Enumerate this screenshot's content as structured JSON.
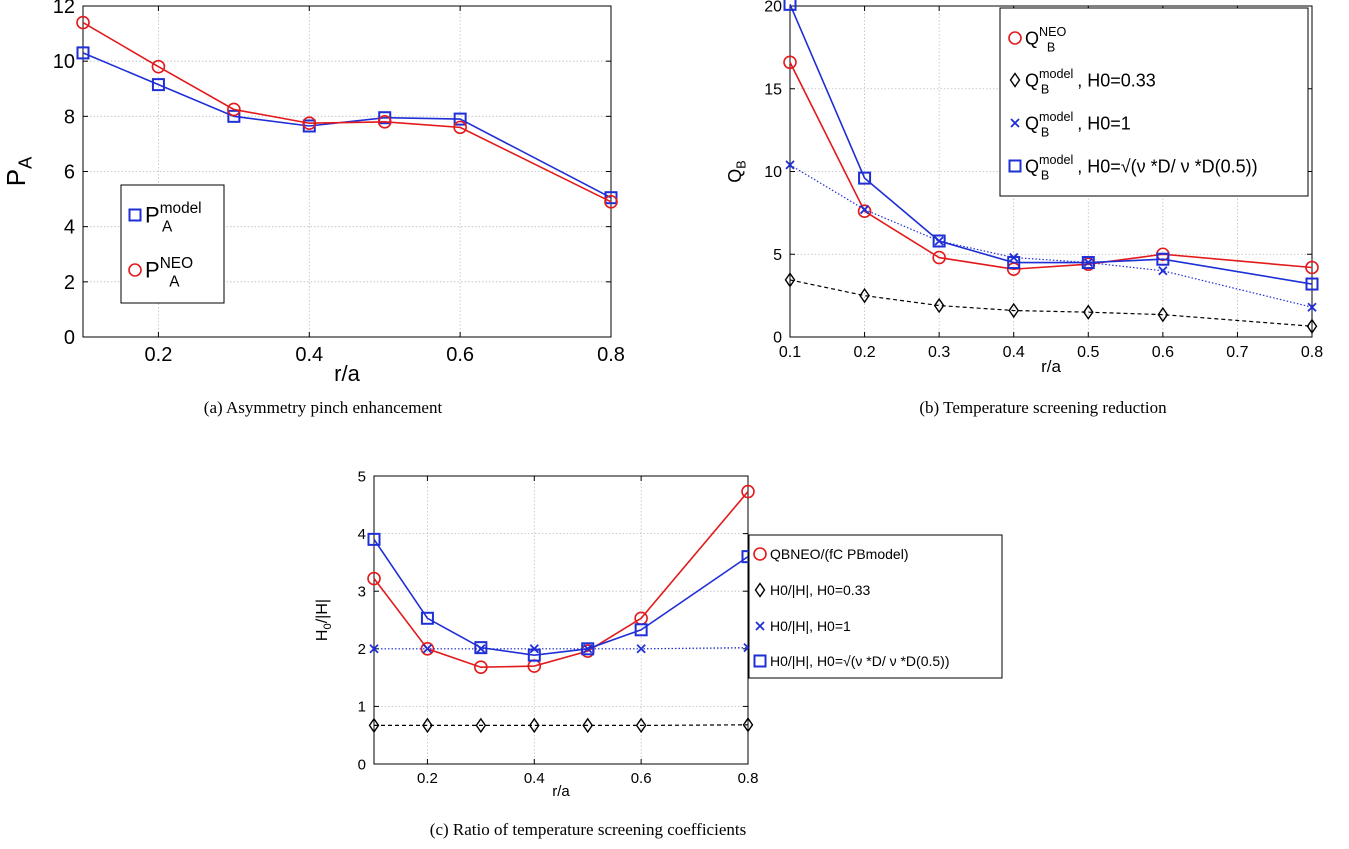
{
  "colors": {
    "red": "#e31a1c",
    "blue": "#1f2fd6",
    "black": "#000000",
    "grid": "#bdbdbd"
  },
  "chart_data": [
    {
      "id": "a",
      "type": "line",
      "caption": "(a) Asymmetry pinch enhancement",
      "xlabel": "r/a",
      "ylabel": {
        "base": "P",
        "sub": "A"
      },
      "xlim": [
        0.1,
        0.8
      ],
      "ylim": [
        0,
        12
      ],
      "xticks": [
        0.2,
        0.4,
        0.6,
        0.8
      ],
      "xtick_labels": [
        "0.2",
        "0.4",
        "0.6",
        "0.8"
      ],
      "yticks": [
        0,
        2,
        4,
        6,
        8,
        10,
        12
      ],
      "ytick_labels": [
        "0",
        "2",
        "4",
        "6",
        "8",
        "10",
        "12"
      ],
      "grid": true,
      "legend_position": "lower-left",
      "series": [
        {
          "key": "pa_model",
          "legend": {
            "base": "P",
            "sup": "model",
            "sub": "A",
            "rest": ""
          },
          "color": "blue",
          "marker": "square",
          "line": "solid",
          "x": [
            0.1,
            0.2,
            0.3,
            0.4,
            0.5,
            0.6,
            0.8
          ],
          "y": [
            10.3,
            9.15,
            8.0,
            7.65,
            7.95,
            7.9,
            5.05
          ]
        },
        {
          "key": "pa_neo",
          "legend": {
            "base": "P",
            "sup": "NEO",
            "sub": "A",
            "rest": ""
          },
          "color": "red",
          "marker": "circle",
          "line": "solid",
          "x": [
            0.1,
            0.2,
            0.3,
            0.4,
            0.5,
            0.6,
            0.8
          ],
          "y": [
            11.4,
            9.8,
            8.25,
            7.75,
            7.8,
            7.6,
            4.9
          ]
        }
      ]
    },
    {
      "id": "b",
      "type": "line",
      "caption": "(b) Temperature screening reduction",
      "xlabel": "r/a",
      "ylabel": {
        "base": "Q",
        "sub": "B"
      },
      "xlim": [
        0.1,
        0.8
      ],
      "ylim": [
        0,
        20
      ],
      "xticks": [
        0.1,
        0.2,
        0.3,
        0.4,
        0.5,
        0.6,
        0.7,
        0.8
      ],
      "xtick_labels": [
        "0.1",
        "0.2",
        "0.3",
        "0.4",
        "0.5",
        "0.6",
        "0.7",
        "0.8"
      ],
      "yticks": [
        0,
        5,
        10,
        15,
        20
      ],
      "ytick_labels": [
        "0",
        "5",
        "10",
        "15",
        "20"
      ],
      "grid": true,
      "legend_position": "top-right",
      "series": [
        {
          "key": "qb_neo",
          "legend": {
            "base": "Q",
            "sup": "NEO",
            "sub": "B",
            "rest": ""
          },
          "color": "red",
          "marker": "circle",
          "line": "solid",
          "x": [
            0.1,
            0.2,
            0.3,
            0.4,
            0.5,
            0.6,
            0.8
          ],
          "y": [
            16.6,
            7.6,
            4.8,
            4.1,
            4.4,
            5.0,
            4.2
          ]
        },
        {
          "key": "qb_model_033",
          "legend": {
            "base": "Q",
            "sup": "model",
            "sub": "B",
            "rest": ", H0=0.33"
          },
          "color": "black",
          "marker": "diamond",
          "line": "dashed",
          "x": [
            0.1,
            0.2,
            0.3,
            0.4,
            0.5,
            0.6,
            0.8
          ],
          "y": [
            3.45,
            2.5,
            1.9,
            1.6,
            1.5,
            1.35,
            0.65
          ]
        },
        {
          "key": "qb_model_1",
          "legend": {
            "base": "Q",
            "sup": "model",
            "sub": "B",
            "rest": ", H0=1"
          },
          "color": "blue",
          "marker": "x",
          "line": "dotted",
          "x": [
            0.1,
            0.2,
            0.3,
            0.4,
            0.5,
            0.6,
            0.8
          ],
          "y": [
            10.4,
            7.7,
            5.8,
            4.8,
            4.5,
            4.0,
            1.8
          ]
        },
        {
          "key": "qb_model_sqrt",
          "legend": {
            "base": "Q",
            "sup": "model",
            "sub": "B",
            "rest": ", H0=√(ν *D/ ν *D(0.5))"
          },
          "color": "blue",
          "marker": "square",
          "line": "solid",
          "x": [
            0.1,
            0.2,
            0.3,
            0.4,
            0.5,
            0.6,
            0.8
          ],
          "y": [
            20.1,
            9.6,
            5.8,
            4.5,
            4.5,
            4.7,
            3.2
          ]
        }
      ]
    },
    {
      "id": "c",
      "type": "line",
      "caption": "(c) Ratio of temperature screening coefficients",
      "xlabel": "r/a",
      "ylabel": {
        "base": "H",
        "sub": "0",
        "rest": "/|H|"
      },
      "xlim": [
        0.1,
        0.8
      ],
      "ylim": [
        0,
        5
      ],
      "xticks": [
        0.2,
        0.4,
        0.6,
        0.8
      ],
      "xtick_labels": [
        "0.2",
        "0.4",
        "0.6",
        "0.8"
      ],
      "yticks": [
        0,
        1,
        2,
        3,
        4,
        5
      ],
      "ytick_labels": [
        "0",
        "1",
        "2",
        "3",
        "4",
        "5"
      ],
      "grid": true,
      "legend_position": "outside-right",
      "series": [
        {
          "key": "ratio_neo",
          "legend_text": "QBNEO/(fC PBmodel)",
          "color": "red",
          "marker": "circle",
          "line": "solid",
          "x": [
            0.1,
            0.2,
            0.3,
            0.4,
            0.5,
            0.6,
            0.8
          ],
          "y": [
            3.22,
            2.0,
            1.68,
            1.7,
            1.96,
            2.53,
            4.73
          ]
        },
        {
          "key": "ratio_033",
          "legend_text": "H0/|H|, H0=0.33",
          "color": "black",
          "marker": "diamond",
          "line": "dashed",
          "x": [
            0.1,
            0.2,
            0.3,
            0.4,
            0.5,
            0.6,
            0.8
          ],
          "y": [
            0.67,
            0.67,
            0.67,
            0.67,
            0.67,
            0.67,
            0.68
          ]
        },
        {
          "key": "ratio_1",
          "legend_text": "H0/|H|, H0=1",
          "color": "blue",
          "marker": "x",
          "line": "dotted",
          "x": [
            0.1,
            0.2,
            0.3,
            0.4,
            0.5,
            0.6,
            0.8
          ],
          "y": [
            2.0,
            2.0,
            2.0,
            2.0,
            2.0,
            2.0,
            2.02
          ]
        },
        {
          "key": "ratio_sqrt",
          "legend_text": "H0/|H|, H0=√(ν *D/ ν *D(0.5))",
          "color": "blue",
          "marker": "square",
          "line": "solid",
          "x": [
            0.1,
            0.2,
            0.3,
            0.4,
            0.5,
            0.6,
            0.8
          ],
          "y": [
            3.9,
            2.53,
            2.02,
            1.89,
            2.0,
            2.33,
            3.6
          ]
        }
      ]
    }
  ]
}
